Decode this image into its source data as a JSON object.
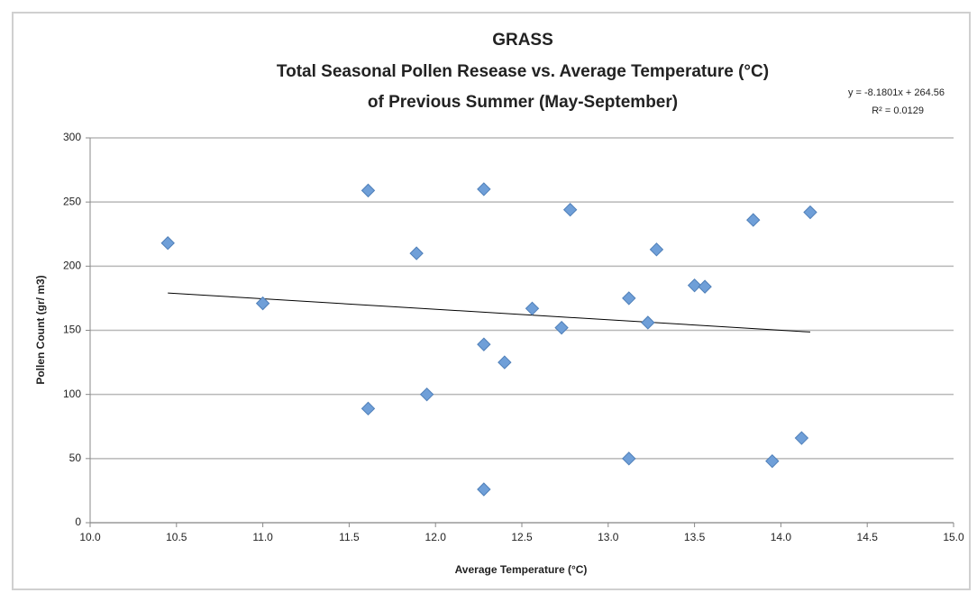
{
  "chart_data": {
    "type": "scatter",
    "title": "GRASS",
    "subtitle": [
      "Total Seasonal Pollen Resease vs. Average Temperature (°C)",
      "of Previous Summer (May-September)"
    ],
    "x_label": "Average Temperature (°C)",
    "y_label": "Pollen Count (gr/ m3)",
    "color": "#6f9fd8",
    "grid": true,
    "x": [
      10.45,
      11.0,
      11.61,
      11.61,
      11.89,
      11.95,
      12.28,
      12.28,
      12.28,
      12.4,
      12.56,
      12.73,
      12.78,
      13.12,
      13.12,
      13.23,
      13.28,
      13.5,
      13.56,
      13.84,
      13.95,
      14.12,
      14.17
    ],
    "values": [
      218,
      171,
      259,
      89,
      210,
      100,
      260,
      139,
      26,
      125,
      167,
      152,
      244,
      175,
      50,
      156,
      213,
      185,
      184,
      236,
      48,
      66,
      242
    ],
    "xlim": [
      10,
      15
    ],
    "xticks": [
      {
        "value": 10,
        "label": "10.0"
      },
      {
        "value": 10.5,
        "label": "10.5"
      },
      {
        "value": 11,
        "label": "11.0"
      },
      {
        "value": 11.5,
        "label": "11.5"
      },
      {
        "value": 12,
        "label": "12.0"
      },
      {
        "value": 12.5,
        "label": "12.5"
      },
      {
        "value": 13,
        "label": "13.0"
      },
      {
        "value": 13.5,
        "label": "13.5"
      },
      {
        "value": 14,
        "label": "14.0"
      },
      {
        "value": 14.5,
        "label": "14.5"
      },
      {
        "value": 15,
        "label": "15.0"
      }
    ],
    "ylim": [
      0,
      300
    ],
    "yticks": [
      0,
      50,
      100,
      150,
      200,
      250,
      300
    ],
    "trendline": {
      "slope": -8.1801,
      "intercept": 264.56,
      "label": "y = -8.1801x + 264.56",
      "r2_label": "R² = 0.0129"
    }
  }
}
